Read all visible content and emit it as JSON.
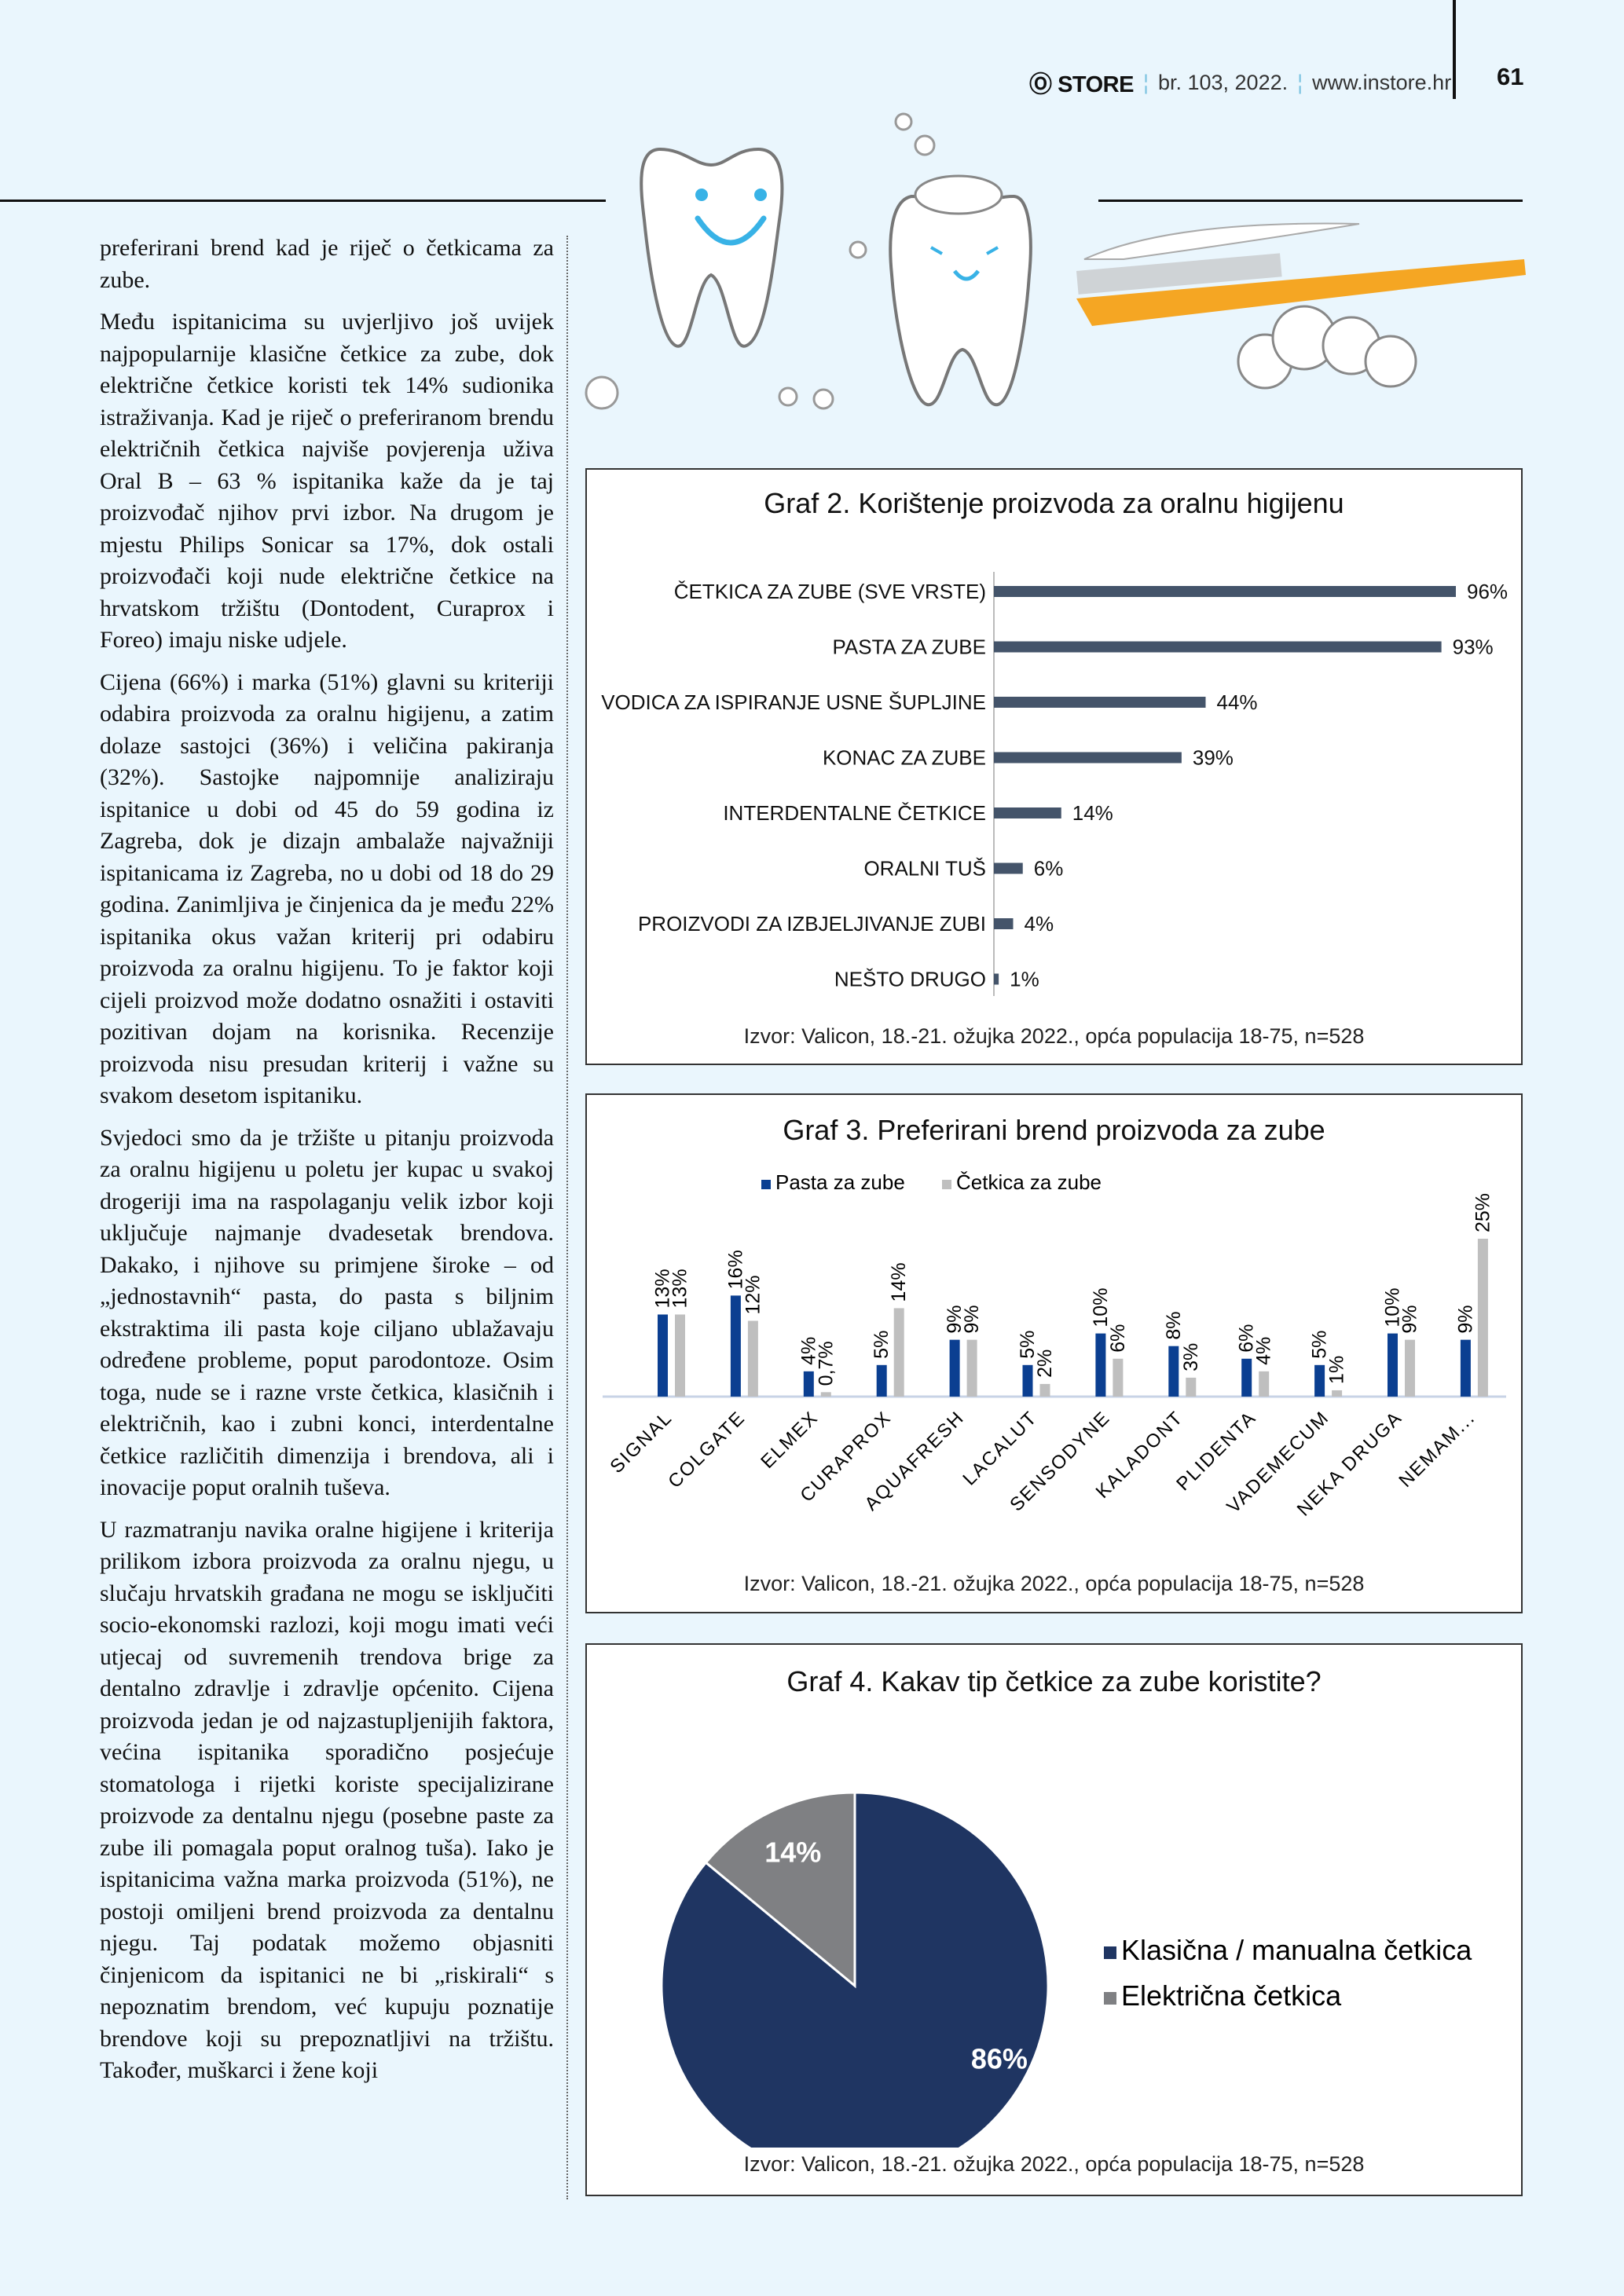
{
  "header": {
    "logo": "STORE",
    "issue": "br. 103, 2022.",
    "url": "www.instore.hr",
    "page": "61"
  },
  "article": {
    "paragraphs": [
      "preferirani brend kad je riječ o četkicama za zube.",
      "Među ispitanicima su uvjerljivo još uvijek najpopularnije klasične četkice za zube, dok električne četkice koristi tek 14% sudionika istraživanja. Kad je riječ o preferiranom brendu električnih četkica najviše povjerenja uživa Oral B – 63 % ispitanika kaže da je taj proizvođač njihov prvi izbor. Na drugom je mjestu Philips Sonicar sa 17%, dok ostali proizvođači koji nude električne četkice na hrvatskom tržištu (Dontodent, Curaprox i Foreo) imaju niske udjele.",
      "Cijena (66%) i marka (51%) glavni su kriteriji odabira proizvoda za oralnu higijenu, a zatim dolaze sastojci (36%) i veličina pakiranja (32%). Sastojke najpomnije analiziraju ispitanice u dobi od 45 do 59 godina iz Zagreba, dok je dizajn ambalaže najvažniji ispitanicama iz Zagreba, no u dobi od 18 do 29 godina. Zanimljiva je činjenica da je među 22% ispitanika okus važan kriterij pri odabiru proizvoda za oralnu higijenu. To je faktor koji cijeli proizvod može dodatno osnažiti i ostaviti pozitivan dojam na korisnika. Recenzije proizvoda nisu presudan kriterij i važne su svakom desetom ispitaniku.",
      "Svjedoci smo da je tržište u pitanju proizvoda za oralnu higijenu u poletu jer kupac u svakoj drogeriji ima na raspolaganju velik izbor koji uključuje najmanje dvadesetak brendova. Dakako, i njihove su primjene široke – od „jednostavnih“ pasta, do pasta s biljnim ekstraktima ili pasta koje ciljano ublažavaju određene probleme, poput parodontoze. Osim toga, nude se i razne vrste četkica, klasičnih i električnih, kao i zubni konci, interdentalne četkice različitih dimenzija i brendova, ali i inovacije poput oralnih tuševa.",
      "U razmatranju navika oralne higijene i kriterija prilikom izbora proizvoda za oralnu njegu, u slučaju hrvatskih građana ne mogu se isključiti socio-ekonomski razlozi, koji mogu imati veći utjecaj od suvremenih trendova brige za dentalno zdravlje i zdravlje općenito. Cijena proizvoda jedan je od najzastupljenijih faktora, većina ispitanika sporadično posjećuje stomatologa i rijetki koriste specijalizirane proizvode za dentalnu njegu (posebne paste za zube ili pomagala poput oralnog tuša). Iako je ispitanicima važna marka proizvoda (51%), ne postoji omiljeni brend proizvoda za dentalnu njegu. Taj podatak možemo objasniti činjenicom da ispitanici ne bi „riskirali“ s nepoznatim brendom, već kupuju poznatije brendove koji su prepoznatljivi na tržištu. Također, muškarci i žene koji"
    ]
  },
  "chart_data": [
    {
      "type": "bar",
      "orientation": "horizontal",
      "title": "Graf 2. Korištenje proizvoda za oralnu higijenu",
      "categories": [
        "ČETKICA ZA ZUBE (SVE VRSTE)",
        "PASTA ZA ZUBE",
        "VODICA ZA ISPIRANJE USNE ŠUPLJINE",
        "KONAC ZA ZUBE",
        "INTERDENTALNE ČETKICE",
        "ORALNI TUŠ",
        "PROIZVODI ZA IZBJELJIVANJE ZUBI",
        "NEŠTO DRUGO"
      ],
      "values": [
        96,
        93,
        44,
        39,
        14,
        6,
        4,
        1
      ],
      "labels": [
        "96%",
        "93%",
        "44%",
        "39%",
        "14%",
        "6%",
        "4%",
        "1%"
      ],
      "color": "#44546a",
      "xlim": [
        0,
        100
      ],
      "source": "Izvor: Valicon, 18.-21. ožujka 2022., opća populacija 18-75, n=528"
    },
    {
      "type": "bar",
      "title": "Graf 3. Preferirani brend proizvoda za zube",
      "categories": [
        "SIGNAL",
        "COLGATE",
        "ELMEX",
        "CURAPROX",
        "AQUAFRESH",
        "LACALUT",
        "SENSODYNE",
        "KALADONT",
        "PLIDENTA",
        "VADEMECUM",
        "NEKA DRUGA",
        "NEMAM..."
      ],
      "series": [
        {
          "name": "Pasta za zube",
          "color": "#0b3f91",
          "values": [
            13,
            16,
            4,
            5,
            9,
            5,
            10,
            8,
            6,
            5,
            10,
            9
          ],
          "labels": [
            "13%",
            "16%",
            "4%",
            "5%",
            "9%",
            "5%",
            "10%",
            "8%",
            "6%",
            "5%",
            "10%",
            "9%"
          ]
        },
        {
          "name": "Četkica za zube",
          "color": "#bfbfbf",
          "values": [
            13,
            12,
            0.7,
            14,
            9,
            2,
            6,
            3,
            4,
            1,
            9,
            25
          ],
          "labels": [
            "13%",
            "12%",
            "0,7%",
            "14%",
            "9%",
            "2%",
            "6%",
            "3%",
            "4%",
            "1%",
            "9%",
            "25%"
          ]
        }
      ],
      "ylim": [
        0,
        30
      ],
      "legend": "top-center",
      "source": "Izvor: Valicon, 18.-21. ožujka 2022., opća populacija 18-75, n=528"
    },
    {
      "type": "pie",
      "title": "Graf 4. Kakav tip četkice za zube koristite?",
      "slices": [
        {
          "name": "Klasična / manualna četkica",
          "value": 86,
          "label": "86%",
          "color": "#1f3562"
        },
        {
          "name": "Električna četkica",
          "value": 14,
          "label": "14%",
          "color": "#7f8083"
        }
      ],
      "legend": "right",
      "source": "Izvor: Valicon, 18.-21. ožujka 2022., opća populacija 18-75, n=528"
    }
  ]
}
